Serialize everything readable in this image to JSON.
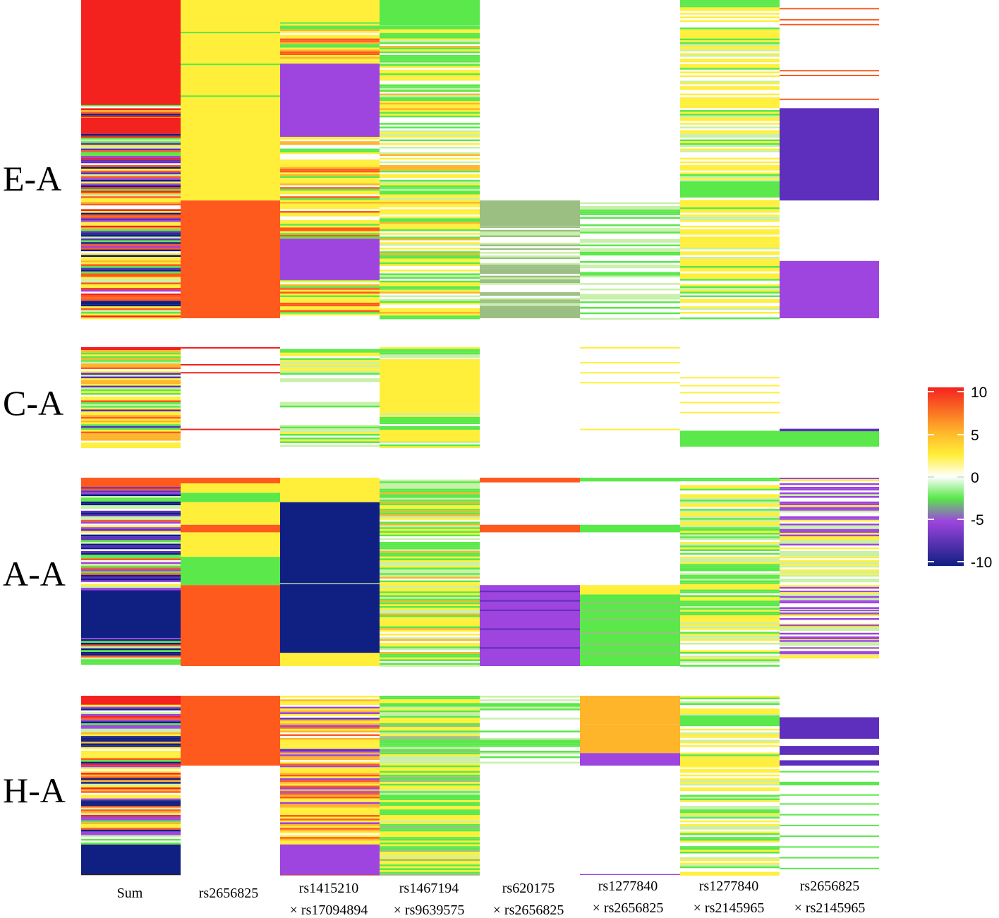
{
  "chart_data": {
    "type": "heatmap",
    "title": "",
    "row_groups": [
      "E-A",
      "C-A",
      "A-A",
      "H-A"
    ],
    "columns": [
      {
        "line1": "Sum",
        "line2": ""
      },
      {
        "line1": "rs2656825",
        "line2": ""
      },
      {
        "line1": "rs1415210",
        "line2": "× rs17094894"
      },
      {
        "line1": "rs1467194",
        "line2": "× rs9639575"
      },
      {
        "line1": "rs620175",
        "line2": "× rs2656825"
      },
      {
        "line1": "rs1277840",
        "line2": "× rs2656825"
      },
      {
        "line1": "rs1277840",
        "line2": "× rs2145965"
      },
      {
        "line1": "rs2656825",
        "line2": "× rs2145965"
      }
    ],
    "colorbar": {
      "range": [
        -10,
        10
      ],
      "ticks": [
        10,
        5,
        0,
        -5,
        -10
      ],
      "tick_labels": [
        "10",
        "5",
        "0",
        "-5",
        "-10"
      ]
    },
    "colors": {
      "v10": "#f4221e",
      "v7": "#ff5a1e",
      "v5": "#ffb52a",
      "v3": "#ffef3a",
      "v0": "#ffffff",
      "vm2": "#c8f0a8",
      "vm4": "#5ae84a",
      "vm5": "#9bbf82",
      "vm7": "#9d45de",
      "vm8": "#5e2ebc",
      "vm10": "#0f1f82"
    },
    "panels": [
      {
        "name": "E-A",
        "columns": [
          {
            "mode": "stripes",
            "palette": [
              10,
              9,
              7,
              6,
              5,
              3,
              2,
              0,
              -2,
              -4,
              -6,
              -8,
              -10,
              -10,
              7,
              3,
              -4,
              -8
            ],
            "blocks": [
              [
                0,
                0.33,
                10,
                0
              ],
              [
                0.37,
                0.42,
                10,
                0
              ]
            ]
          },
          {
            "mode": "blocks",
            "blocks": [
              [
                0,
                0.63,
                3,
                0
              ],
              [
                0.63,
                1,
                7,
                0
              ]
            ],
            "lines": [
              [
                0.1,
                -4
              ],
              [
                0.2,
                -4
              ],
              [
                0.3,
                -4
              ]
            ]
          },
          {
            "mode": "stripes_blocks",
            "palette": [
              3,
              3,
              5,
              7,
              3,
              -4,
              0,
              3
            ],
            "blocks": [
              [
                0.2,
                0.43,
                -7,
                0
              ],
              [
                0.75,
                0.88,
                -7,
                0
              ],
              [
                0,
                0.07,
                3,
                0
              ]
            ]
          },
          {
            "mode": "stripes",
            "palette": [
              -4,
              -4,
              3,
              3,
              0,
              0,
              -4,
              3,
              -2,
              5
            ],
            "blocks": [
              [
                0,
                0.08,
                -4,
                0
              ]
            ]
          },
          {
            "mode": "stripes_blocks",
            "palette": [
              -5,
              -5,
              0,
              -2,
              1
            ],
            "range": [
              0.63,
              1
            ],
            "blocks": [
              [
                0.63,
                0.71,
                -5,
                0
              ],
              [
                0.96,
                1,
                -5,
                0
              ]
            ]
          },
          {
            "mode": "stripes",
            "palette": [
              0,
              -2,
              -2,
              0,
              0,
              -4
            ],
            "range": [
              0.63,
              1
            ]
          },
          {
            "mode": "stripes_blocks",
            "palette": [
              3,
              3,
              -4,
              0,
              -2,
              3,
              1
            ],
            "blocks": [
              [
                0.57,
                0.62,
                -4,
                0
              ]
            ]
          },
          {
            "mode": "sparse_blocks",
            "blocks": [
              [
                0.34,
                0.63,
                -8,
                0
              ],
              [
                0.82,
                1,
                -7,
                0
              ]
            ],
            "lines": [
              [
                0.025,
                7
              ],
              [
                0.06,
                7
              ],
              [
                0.075,
                7
              ],
              [
                0.22,
                7
              ],
              [
                0.235,
                7
              ],
              [
                0.31,
                7
              ]
            ]
          }
        ]
      },
      {
        "name": "C-A",
        "columns": [
          {
            "mode": "stripes",
            "palette": [
              7,
              5,
              3,
              3,
              0,
              -4,
              3,
              -2,
              -8
            ],
            "blocks": [
              [
                0,
                0.03,
                10,
                0
              ]
            ]
          },
          {
            "mode": "sparse_blocks",
            "lines": [
              [
                0.0,
                10
              ],
              [
                0.17,
                10
              ],
              [
                0.25,
                10
              ],
              [
                0.82,
                10
              ]
            ]
          },
          {
            "mode": "sparse_stripes",
            "palette": [
              3,
              0,
              -4,
              -2
            ],
            "cover": [
              [
                0,
                0.35
              ],
              [
                0.55,
                0.6
              ],
              [
                0.78,
                1
              ]
            ]
          },
          {
            "mode": "stripes_blocks",
            "palette": [
              3,
              0,
              -4,
              -2
            ],
            "blocks": [
              [
                0.12,
                0.62,
                3,
                0
              ],
              [
                0.83,
                0.95,
                3,
                0
              ]
            ]
          },
          {
            "mode": "empty"
          },
          {
            "mode": "sparse_blocks",
            "lines": [
              [
                0.0,
                3
              ],
              [
                0.15,
                3
              ],
              [
                0.25,
                3
              ],
              [
                0.35,
                3
              ],
              [
                0.82,
                3
              ]
            ]
          },
          {
            "mode": "sparse_blocks",
            "blocks": [
              [
                0.84,
                1,
                -4,
                0
              ]
            ],
            "lines": [
              [
                0.3,
                3
              ],
              [
                0.38,
                3
              ],
              [
                0.45,
                3
              ],
              [
                0.55,
                3
              ],
              [
                0.65,
                3
              ]
            ]
          },
          {
            "mode": "sparse_blocks",
            "blocks": [
              [
                0.84,
                1,
                -4,
                0
              ],
              [
                0.82,
                0.845,
                -8,
                0
              ]
            ]
          }
        ]
      },
      {
        "name": "A-A",
        "columns": [
          {
            "mode": "stripes",
            "palette": [
              7,
              3,
              -4,
              0,
              -2,
              -8,
              -10,
              -10,
              -7
            ],
            "blocks": [
              [
                0.6,
                0.85,
                -10,
                0
              ],
              [
                0,
                0.05,
                7,
                0
              ]
            ]
          },
          {
            "mode": "blocks",
            "blocks": [
              [
                0,
                0.03,
                7,
                0
              ],
              [
                0.03,
                0.08,
                3,
                0
              ],
              [
                0.08,
                0.13,
                -4,
                0
              ],
              [
                0.13,
                0.25,
                3,
                0
              ],
              [
                0.25,
                0.29,
                7,
                0
              ],
              [
                0.29,
                0.42,
                3,
                0
              ],
              [
                0.42,
                0.57,
                -4,
                0
              ],
              [
                0.57,
                1,
                7,
                0
              ]
            ]
          },
          {
            "mode": "blocks",
            "blocks": [
              [
                0,
                0.13,
                3,
                0
              ],
              [
                0.13,
                0.56,
                -10,
                1
              ],
              [
                0.56,
                0.565,
                -2,
                0
              ],
              [
                0.565,
                0.93,
                -10,
                1
              ],
              [
                0.93,
                1,
                3,
                0
              ]
            ]
          },
          {
            "mode": "stripes",
            "palette": [
              3,
              3,
              -4,
              -4,
              0,
              5,
              -2
            ]
          },
          {
            "mode": "blocks",
            "blocks": [
              [
                0,
                0.025,
                7,
                0
              ],
              [
                0.25,
                0.29,
                7,
                0
              ],
              [
                0.57,
                1,
                -7,
                0
              ]
            ],
            "lines": [
              [
                0.6,
                -8
              ],
              [
                0.65,
                -8
              ],
              [
                0.7,
                -8
              ],
              [
                0.8,
                -8
              ],
              [
                0.9,
                -8
              ]
            ]
          },
          {
            "mode": "blocks",
            "blocks": [
              [
                0,
                0.02,
                -4,
                0
              ],
              [
                0.25,
                0.29,
                -4,
                0
              ],
              [
                0.57,
                0.62,
                3,
                0
              ],
              [
                0.62,
                1,
                -4,
                0
              ]
            ],
            "lines": [
              [
                0.66,
                -5
              ],
              [
                0.7,
                -5
              ],
              [
                0.75,
                -5
              ],
              [
                0.82,
                -5
              ],
              [
                0.88,
                -5
              ],
              [
                0.93,
                -5
              ]
            ]
          },
          {
            "mode": "stripes",
            "palette": [
              3,
              -4,
              -2,
              0,
              3,
              -4,
              -2
            ]
          },
          {
            "mode": "sparse_stripes",
            "palette": [
              0,
              -2,
              3,
              -7
            ],
            "cover": [
              [
                0,
                0.55
              ],
              [
                0.57,
                0.95
              ]
            ],
            "lines": [
              [
                0.0,
                -7
              ],
              [
                0.6,
                -7
              ],
              [
                0.65,
                -7
              ],
              [
                0.7,
                -7
              ],
              [
                0.78,
                -7
              ],
              [
                0.85,
                -7
              ],
              [
                0.9,
                -7
              ],
              [
                0.93,
                -7
              ]
            ]
          }
        ]
      },
      {
        "name": "H-A",
        "columns": [
          {
            "mode": "stripes",
            "palette": [
              10,
              7,
              3,
              5,
              0,
              -2,
              -4,
              -7,
              -10,
              3,
              7
            ],
            "blocks": [
              [
                0,
                0.05,
                10,
                0
              ],
              [
                0.83,
                1,
                -10,
                0
              ]
            ]
          },
          {
            "mode": "blocks",
            "blocks": [
              [
                0,
                0.39,
                7,
                0
              ]
            ]
          },
          {
            "mode": "stripes",
            "palette": [
              7,
              3,
              3,
              5,
              -7,
              -8,
              0,
              3,
              7,
              -7
            ],
            "blocks": [
              [
                0.83,
                1,
                -7,
                0
              ]
            ]
          },
          {
            "mode": "stripes",
            "palette": [
              3,
              -4,
              -5,
              -4,
              -2,
              3,
              -4
            ]
          },
          {
            "mode": "sparse_stripes",
            "palette": [
              -2,
              -4,
              0,
              0
            ],
            "cover": [
              [
                0,
                0.38
              ]
            ]
          },
          {
            "mode": "blocks",
            "blocks": [
              [
                0,
                0.16,
                5,
                0
              ],
              [
                0.16,
                0.32,
                5,
                0
              ],
              [
                0.32,
                0.39,
                -7,
                0
              ],
              [
                0.995,
                1,
                -7,
                0
              ]
            ]
          },
          {
            "mode": "stripes",
            "palette": [
              3,
              -4,
              0,
              -2,
              3,
              0
            ],
            "blocks": [
              [
                0.11,
                0.17,
                -4,
                0
              ],
              [
                0.35,
                0.4,
                3,
                0
              ]
            ]
          },
          {
            "mode": "sparse_blocks",
            "blocks": [
              [
                0.12,
                0.24,
                -8,
                0
              ],
              [
                0.28,
                0.33,
                -8,
                0
              ],
              [
                0.36,
                0.39,
                -8,
                0
              ],
              [
                0.48,
                0.5,
                -4,
                0
              ]
            ],
            "lines": [
              [
                0.42,
                -4
              ],
              [
                0.55,
                -4
              ],
              [
                0.6,
                -4
              ],
              [
                0.66,
                -4
              ],
              [
                0.72,
                -4
              ],
              [
                0.78,
                -4
              ],
              [
                0.84,
                -4
              ],
              [
                0.9,
                -4
              ],
              [
                0.96,
                -4
              ]
            ]
          }
        ]
      }
    ]
  }
}
